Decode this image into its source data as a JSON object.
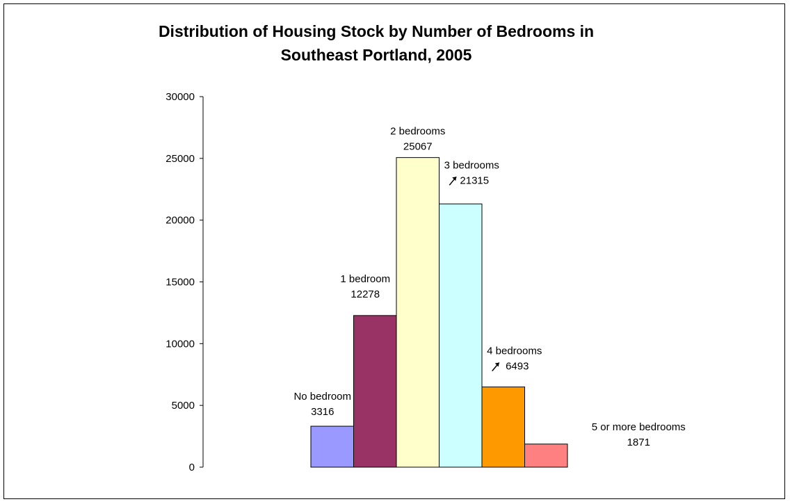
{
  "chart_data": {
    "type": "bar",
    "title": "Distribution of Housing Stock by Number of Bedrooms in Southeast Portland, 2005",
    "title_lines": [
      "Distribution of Housing Stock by Number of Bedrooms in",
      "Southeast Portland, 2005"
    ],
    "xlabel": "",
    "ylabel": "",
    "ylim": [
      0,
      30000
    ],
    "yticks": [
      0,
      5000,
      10000,
      15000,
      20000,
      25000,
      30000
    ],
    "grid": false,
    "legend": "none",
    "categories": [
      "No bedroom",
      "1 bedroom",
      "2 bedrooms",
      "3 bedrooms",
      "4 bedrooms",
      "5 or more bedrooms"
    ],
    "values": [
      3316,
      12278,
      25067,
      21315,
      6493,
      1871
    ],
    "colors": [
      "#9999ff",
      "#993366",
      "#ffffcc",
      "#ccffff",
      "#ff9900",
      "#ff8080"
    ]
  }
}
